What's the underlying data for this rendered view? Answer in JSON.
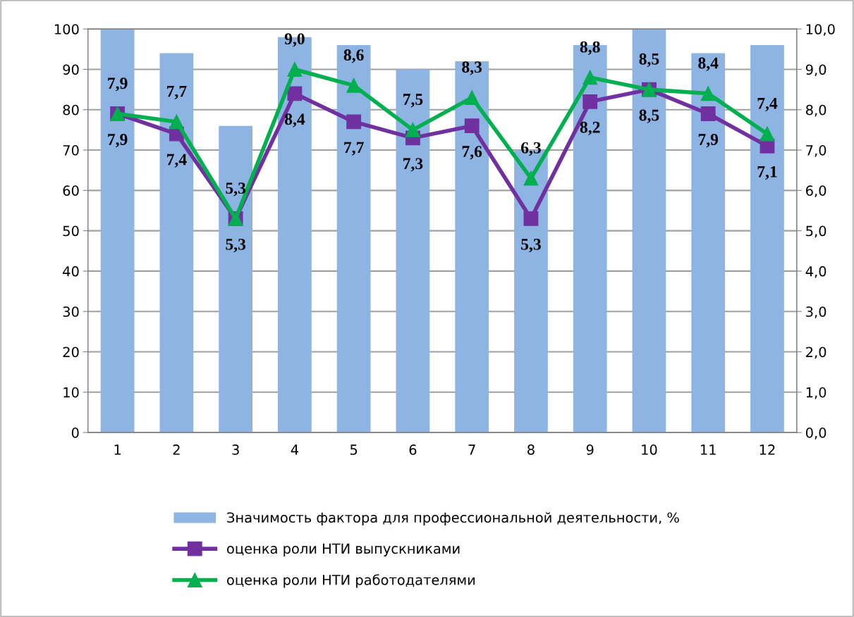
{
  "chart_data": {
    "type": "bar",
    "categories": [
      "1",
      "2",
      "3",
      "4",
      "5",
      "6",
      "7",
      "8",
      "9",
      "10",
      "11",
      "12"
    ],
    "series": [
      {
        "name": "Значимость фактора для профессиональной деятельности, %",
        "color": "#8eb4e3",
        "values": [
          100,
          94,
          76,
          98,
          96,
          90,
          92,
          70,
          96,
          100,
          94,
          96
        ]
      },
      {
        "name": "оценка роли НТИ выпускниками",
        "color": "#7030a0",
        "type": "line",
        "axis": "y2",
        "marker": "square",
        "values": [
          7.9,
          7.4,
          5.3,
          8.4,
          7.7,
          7.3,
          7.6,
          5.3,
          8.2,
          8.5,
          7.9,
          7.1
        ],
        "value_labels": [
          "7,9",
          "7,4",
          "5,3",
          "8,4",
          "7,7",
          "7,3",
          "7,6",
          "5,3",
          "8,2",
          "8,5",
          "7,9",
          "7,1"
        ]
      },
      {
        "name": "оценка роли НТИ работодателями",
        "color": "#00b050",
        "type": "line",
        "axis": "y2",
        "marker": "triangle",
        "values": [
          7.9,
          7.7,
          5.3,
          9.0,
          8.6,
          7.5,
          8.3,
          6.3,
          8.8,
          8.5,
          8.4,
          7.4
        ],
        "value_labels": [
          "7,9",
          "7,7",
          "5,3",
          "9,0",
          "8,6",
          "7,5",
          "8,3",
          "6,3",
          "8,8",
          "8,5",
          "8,4",
          "7,4"
        ]
      }
    ],
    "ylim": [
      0,
      100
    ],
    "yticks": [
      0,
      10,
      20,
      30,
      40,
      50,
      60,
      70,
      80,
      90,
      100
    ],
    "y2lim": [
      0,
      10
    ],
    "y2ticks": [
      {
        "value": 0,
        "label": "0,0"
      },
      {
        "value": 1,
        "label": "1,0"
      },
      {
        "value": 2,
        "label": "2,0"
      },
      {
        "value": 3,
        "label": "3,0"
      },
      {
        "value": 4,
        "label": "4,0"
      },
      {
        "value": 5,
        "label": "5,0"
      },
      {
        "value": 6,
        "label": "6,0"
      },
      {
        "value": 7,
        "label": "7,0"
      },
      {
        "value": 8,
        "label": "8,0"
      },
      {
        "value": 9,
        "label": "9,0"
      },
      {
        "value": 10,
        "label": "10,0"
      }
    ],
    "grid": "y",
    "legend": "bottom"
  }
}
